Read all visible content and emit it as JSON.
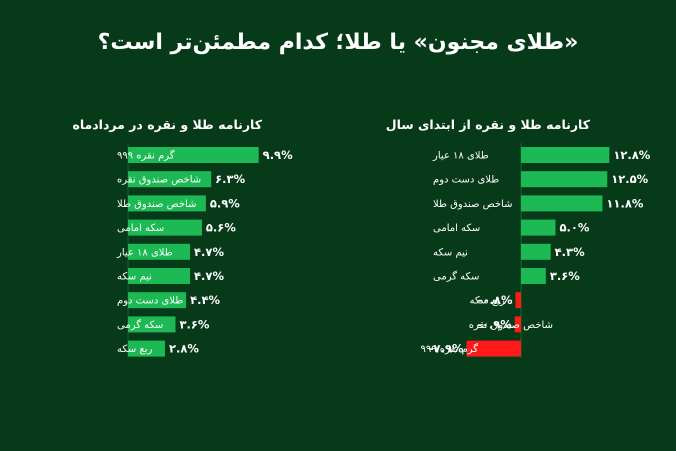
{
  "title": "«طلای مجنون» یا طلا؛ کدام مطمئن‌تر است؟",
  "colors": {
    "background": "#073a18",
    "positive": "#1db954",
    "negative": "#ff1a1a",
    "text": "#ffffff"
  },
  "chart_data": [
    {
      "type": "bar",
      "orientation": "horizontal",
      "title": "کارنامه طلا و نقره از ابتدای سال",
      "categories": [
        "طلای ۱۸ عیار",
        "طلای دست دوم",
        "شاخص صندوق طلا",
        "سکه امامی",
        "نیم سکه",
        "سکه گرمی",
        "ربع سکه",
        "شاخص صندوق نقره",
        "گرم نقره ۹۹۹"
      ],
      "values": [
        12.8,
        12.5,
        11.8,
        5.0,
        4.3,
        3.6,
        -0.8,
        -0.9,
        -7.9
      ],
      "labels": [
        "۱۲.۸%",
        "۱۲.۵%",
        "۱۱.۸%",
        "۵.۰%",
        "۴.۳%",
        "۳.۶%",
        "-۰.۸%",
        "-۰.۹%",
        "-۷.۹%"
      ]
    },
    {
      "type": "bar",
      "orientation": "horizontal",
      "title": "کارنامه طلا و نقره در مردادماه",
      "categories": [
        "گرم نقره ۹۹۹",
        "شاخص صندوق نقره",
        "شاخص صندوق طلا",
        "سکه امامی",
        "طلای ۱۸ عیار",
        "نیم سکه",
        "طلای دست دوم",
        "سکه گرمی",
        "ربع سکه"
      ],
      "values": [
        9.9,
        6.3,
        5.9,
        5.6,
        4.7,
        4.7,
        4.4,
        3.6,
        2.8
      ],
      "labels": [
        "۹.۹%",
        "۶.۳%",
        "۵.۹%",
        "۵.۶%",
        "۴.۷%",
        "۴.۷%",
        "۴.۴%",
        "۳.۶%",
        "۲.۸%"
      ]
    }
  ]
}
